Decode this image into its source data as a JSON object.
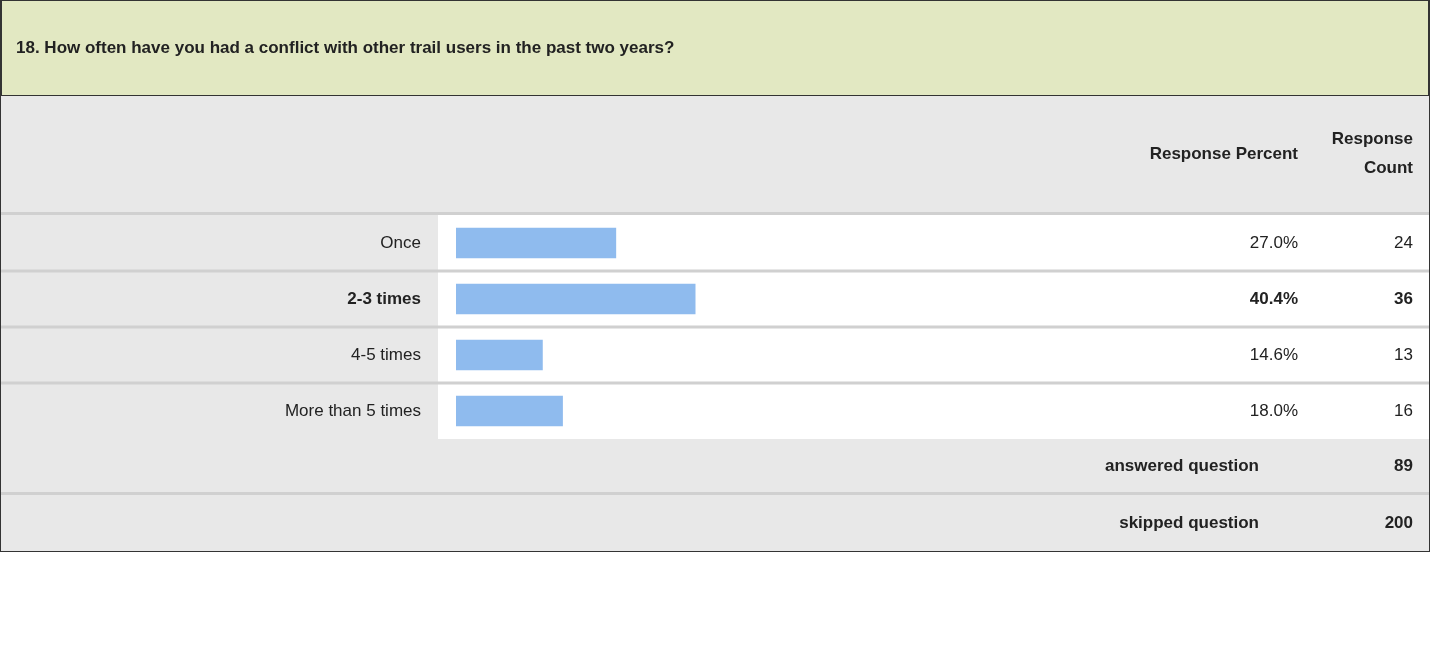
{
  "chart_data": {
    "type": "bar",
    "orientation": "horizontal",
    "title": "18. How often have you had a conflict with other trail users in the past two years?",
    "categories": [
      "Once",
      "2-3 times",
      "4-5 times",
      "More than 5 times"
    ],
    "values": [
      27.0,
      40.4,
      14.6,
      18.0
    ],
    "value_labels": [
      "27.0%",
      "40.4%",
      "14.6%",
      "18.0%"
    ],
    "color": "#8fbbee",
    "tick_labels": false,
    "grid": false,
    "legend": false,
    "annotations": [
      "Response Percent",
      "Response Count",
      "24",
      "36",
      "13",
      "16",
      "answered question",
      "89",
      "skipped question",
      "200"
    ]
  }
}
